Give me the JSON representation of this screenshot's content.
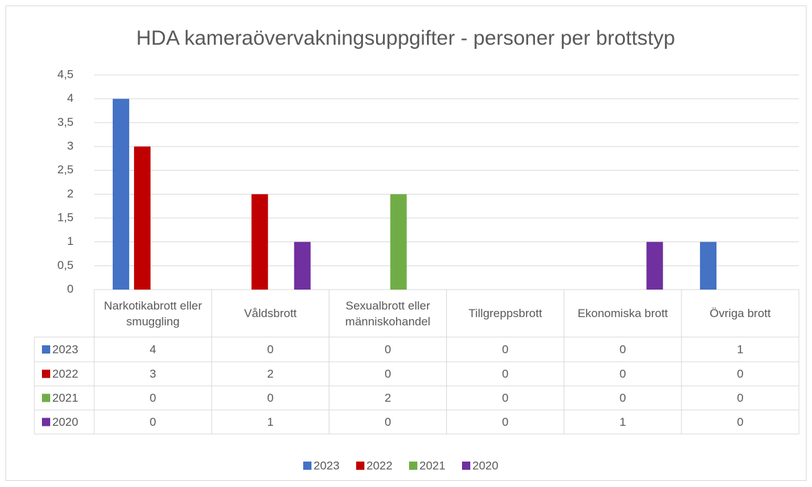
{
  "chart_data": {
    "type": "bar",
    "title": "HDA kameraövervakningsuppgifter - personer per brottstyp",
    "categories": [
      "Narkotikabrott eller smuggling",
      "Våldsbrott",
      "Sexualbrott eller människohandel",
      "Tillgreppsbrott",
      "Ekonomiska brott",
      "Övriga brott"
    ],
    "series": [
      {
        "name": "2023",
        "color": "#4472c4",
        "values": [
          4,
          0,
          0,
          0,
          0,
          1
        ]
      },
      {
        "name": "2022",
        "color": "#c00000",
        "values": [
          3,
          2,
          0,
          0,
          0,
          0
        ]
      },
      {
        "name": "2021",
        "color": "#70ad47",
        "values": [
          0,
          0,
          2,
          0,
          0,
          0
        ]
      },
      {
        "name": "2020",
        "color": "#7030a0",
        "values": [
          0,
          1,
          0,
          0,
          1,
          0
        ]
      }
    ],
    "ylim": [
      0,
      4.5
    ],
    "yticks": [
      0,
      {
        "value": 0.5,
        "label": "0,5"
      },
      1,
      {
        "value": 1.5,
        "label": "1,5"
      },
      2,
      {
        "value": 2.5,
        "label": "2,5"
      },
      3,
      {
        "value": 3.5,
        "label": "3,5"
      },
      4,
      {
        "value": 4.5,
        "label": "4,5"
      }
    ],
    "grid": true,
    "legend": "bottom",
    "data_table": true
  }
}
